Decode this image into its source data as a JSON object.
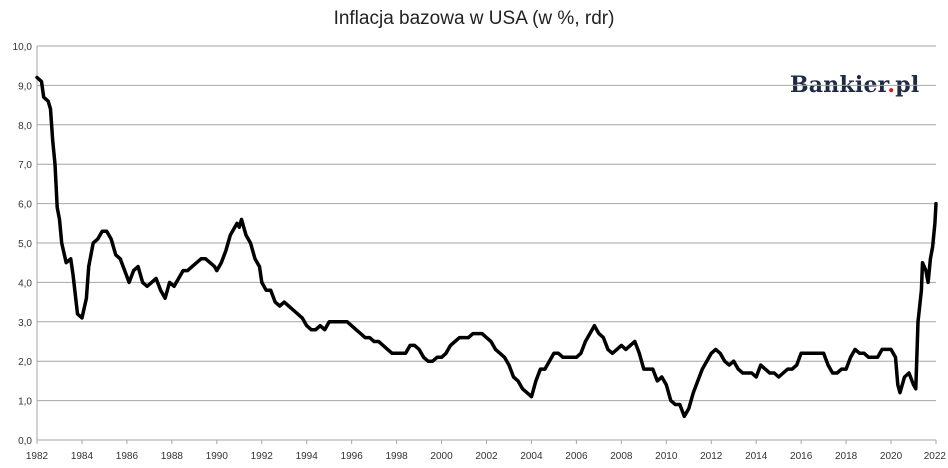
{
  "chart_data": {
    "type": "line",
    "title": "Inflacja bazowa w USA (w %, rdr)",
    "xlabel": "",
    "ylabel": "",
    "xlim": [
      1982,
      2022
    ],
    "ylim": [
      0,
      10
    ],
    "grid": true,
    "x_ticks": [
      "1982",
      "1984",
      "1986",
      "1988",
      "1990",
      "1992",
      "1994",
      "1996",
      "1998",
      "2000",
      "2002",
      "2004",
      "2006",
      "2008",
      "2010",
      "2012",
      "2014",
      "2016",
      "2018",
      "2020",
      "2022"
    ],
    "y_ticks": [
      "0,0",
      "1,0",
      "2,0",
      "3,0",
      "4,0",
      "5,0",
      "6,0",
      "7,0",
      "8,0",
      "9,0",
      "10,0"
    ],
    "series": [
      {
        "points": [
          [
            1982.0,
            9.2
          ],
          [
            1982.2,
            9.1
          ],
          [
            1982.3,
            8.7
          ],
          [
            1982.5,
            8.6
          ],
          [
            1982.6,
            8.4
          ],
          [
            1982.7,
            7.6
          ],
          [
            1982.8,
            7.0
          ],
          [
            1982.9,
            5.9
          ],
          [
            1983.0,
            5.6
          ],
          [
            1983.1,
            5.0
          ],
          [
            1983.3,
            4.5
          ],
          [
            1983.5,
            4.6
          ],
          [
            1983.6,
            4.2
          ],
          [
            1983.8,
            3.2
          ],
          [
            1984.0,
            3.1
          ],
          [
            1984.2,
            3.6
          ],
          [
            1984.3,
            4.4
          ],
          [
            1984.5,
            5.0
          ],
          [
            1984.7,
            5.1
          ],
          [
            1984.9,
            5.3
          ],
          [
            1985.1,
            5.3
          ],
          [
            1985.3,
            5.1
          ],
          [
            1985.5,
            4.7
          ],
          [
            1985.7,
            4.6
          ],
          [
            1985.9,
            4.3
          ],
          [
            1986.1,
            4.0
          ],
          [
            1986.3,
            4.3
          ],
          [
            1986.5,
            4.4
          ],
          [
            1986.7,
            4.0
          ],
          [
            1986.9,
            3.9
          ],
          [
            1987.1,
            4.0
          ],
          [
            1987.3,
            4.1
          ],
          [
            1987.5,
            3.8
          ],
          [
            1987.7,
            3.6
          ],
          [
            1987.9,
            4.0
          ],
          [
            1988.1,
            3.9
          ],
          [
            1988.3,
            4.1
          ],
          [
            1988.5,
            4.3
          ],
          [
            1988.7,
            4.3
          ],
          [
            1988.9,
            4.4
          ],
          [
            1989.1,
            4.5
          ],
          [
            1989.3,
            4.6
          ],
          [
            1989.5,
            4.6
          ],
          [
            1989.7,
            4.5
          ],
          [
            1989.9,
            4.4
          ],
          [
            1990.0,
            4.3
          ],
          [
            1990.2,
            4.5
          ],
          [
            1990.4,
            4.8
          ],
          [
            1990.6,
            5.2
          ],
          [
            1990.8,
            5.4
          ],
          [
            1990.9,
            5.5
          ],
          [
            1991.0,
            5.4
          ],
          [
            1991.1,
            5.6
          ],
          [
            1991.3,
            5.2
          ],
          [
            1991.5,
            5.0
          ],
          [
            1991.7,
            4.6
          ],
          [
            1991.9,
            4.4
          ],
          [
            1992.0,
            4.0
          ],
          [
            1992.2,
            3.8
          ],
          [
            1992.4,
            3.8
          ],
          [
            1992.6,
            3.5
          ],
          [
            1992.8,
            3.4
          ],
          [
            1993.0,
            3.5
          ],
          [
            1993.2,
            3.4
          ],
          [
            1993.4,
            3.3
          ],
          [
            1993.6,
            3.2
          ],
          [
            1993.8,
            3.1
          ],
          [
            1994.0,
            2.9
          ],
          [
            1994.2,
            2.8
          ],
          [
            1994.4,
            2.8
          ],
          [
            1994.6,
            2.9
          ],
          [
            1994.8,
            2.8
          ],
          [
            1995.0,
            3.0
          ],
          [
            1995.2,
            3.0
          ],
          [
            1995.4,
            3.0
          ],
          [
            1995.6,
            3.0
          ],
          [
            1995.8,
            3.0
          ],
          [
            1996.0,
            2.9
          ],
          [
            1996.2,
            2.8
          ],
          [
            1996.4,
            2.7
          ],
          [
            1996.6,
            2.6
          ],
          [
            1996.8,
            2.6
          ],
          [
            1997.0,
            2.5
          ],
          [
            1997.2,
            2.5
          ],
          [
            1997.4,
            2.4
          ],
          [
            1997.6,
            2.3
          ],
          [
            1997.8,
            2.2
          ],
          [
            1998.0,
            2.2
          ],
          [
            1998.2,
            2.2
          ],
          [
            1998.4,
            2.2
          ],
          [
            1998.6,
            2.4
          ],
          [
            1998.8,
            2.4
          ],
          [
            1999.0,
            2.3
          ],
          [
            1999.2,
            2.1
          ],
          [
            1999.4,
            2.0
          ],
          [
            1999.6,
            2.0
          ],
          [
            1999.8,
            2.1
          ],
          [
            2000.0,
            2.1
          ],
          [
            2000.2,
            2.2
          ],
          [
            2000.4,
            2.4
          ],
          [
            2000.6,
            2.5
          ],
          [
            2000.8,
            2.6
          ],
          [
            2001.0,
            2.6
          ],
          [
            2001.2,
            2.6
          ],
          [
            2001.4,
            2.7
          ],
          [
            2001.6,
            2.7
          ],
          [
            2001.8,
            2.7
          ],
          [
            2002.0,
            2.6
          ],
          [
            2002.2,
            2.5
          ],
          [
            2002.4,
            2.3
          ],
          [
            2002.6,
            2.2
          ],
          [
            2002.8,
            2.1
          ],
          [
            2003.0,
            1.9
          ],
          [
            2003.2,
            1.6
          ],
          [
            2003.4,
            1.5
          ],
          [
            2003.6,
            1.3
          ],
          [
            2003.8,
            1.2
          ],
          [
            2004.0,
            1.1
          ],
          [
            2004.2,
            1.5
          ],
          [
            2004.4,
            1.8
          ],
          [
            2004.6,
            1.8
          ],
          [
            2004.8,
            2.0
          ],
          [
            2005.0,
            2.2
          ],
          [
            2005.2,
            2.2
          ],
          [
            2005.4,
            2.1
          ],
          [
            2005.6,
            2.1
          ],
          [
            2005.8,
            2.1
          ],
          [
            2006.0,
            2.1
          ],
          [
            2006.2,
            2.2
          ],
          [
            2006.4,
            2.5
          ],
          [
            2006.6,
            2.7
          ],
          [
            2006.8,
            2.9
          ],
          [
            2007.0,
            2.7
          ],
          [
            2007.2,
            2.6
          ],
          [
            2007.4,
            2.3
          ],
          [
            2007.6,
            2.2
          ],
          [
            2007.8,
            2.3
          ],
          [
            2008.0,
            2.4
          ],
          [
            2008.2,
            2.3
          ],
          [
            2008.4,
            2.4
          ],
          [
            2008.6,
            2.5
          ],
          [
            2008.8,
            2.2
          ],
          [
            2009.0,
            1.8
          ],
          [
            2009.2,
            1.8
          ],
          [
            2009.4,
            1.8
          ],
          [
            2009.6,
            1.5
          ],
          [
            2009.8,
            1.6
          ],
          [
            2010.0,
            1.4
          ],
          [
            2010.2,
            1.0
          ],
          [
            2010.4,
            0.9
          ],
          [
            2010.6,
            0.9
          ],
          [
            2010.8,
            0.6
          ],
          [
            2011.0,
            0.8
          ],
          [
            2011.2,
            1.2
          ],
          [
            2011.4,
            1.5
          ],
          [
            2011.6,
            1.8
          ],
          [
            2011.8,
            2.0
          ],
          [
            2012.0,
            2.2
          ],
          [
            2012.2,
            2.3
          ],
          [
            2012.4,
            2.2
          ],
          [
            2012.6,
            2.0
          ],
          [
            2012.8,
            1.9
          ],
          [
            2013.0,
            2.0
          ],
          [
            2013.2,
            1.8
          ],
          [
            2013.4,
            1.7
          ],
          [
            2013.6,
            1.7
          ],
          [
            2013.8,
            1.7
          ],
          [
            2014.0,
            1.6
          ],
          [
            2014.2,
            1.9
          ],
          [
            2014.4,
            1.8
          ],
          [
            2014.6,
            1.7
          ],
          [
            2014.8,
            1.7
          ],
          [
            2015.0,
            1.6
          ],
          [
            2015.2,
            1.7
          ],
          [
            2015.4,
            1.8
          ],
          [
            2015.6,
            1.8
          ],
          [
            2015.8,
            1.9
          ],
          [
            2016.0,
            2.2
          ],
          [
            2016.2,
            2.2
          ],
          [
            2016.4,
            2.2
          ],
          [
            2016.6,
            2.2
          ],
          [
            2016.8,
            2.2
          ],
          [
            2017.0,
            2.2
          ],
          [
            2017.2,
            1.9
          ],
          [
            2017.4,
            1.7
          ],
          [
            2017.6,
            1.7
          ],
          [
            2017.8,
            1.8
          ],
          [
            2018.0,
            1.8
          ],
          [
            2018.2,
            2.1
          ],
          [
            2018.4,
            2.3
          ],
          [
            2018.6,
            2.2
          ],
          [
            2018.8,
            2.2
          ],
          [
            2019.0,
            2.1
          ],
          [
            2019.2,
            2.1
          ],
          [
            2019.4,
            2.1
          ],
          [
            2019.6,
            2.3
          ],
          [
            2019.8,
            2.3
          ],
          [
            2020.0,
            2.3
          ],
          [
            2020.2,
            2.1
          ],
          [
            2020.3,
            1.4
          ],
          [
            2020.4,
            1.2
          ],
          [
            2020.6,
            1.6
          ],
          [
            2020.8,
            1.7
          ],
          [
            2021.0,
            1.4
          ],
          [
            2021.1,
            1.3
          ],
          [
            2021.2,
            3.0
          ],
          [
            2021.35,
            3.8
          ],
          [
            2021.4,
            4.5
          ],
          [
            2021.55,
            4.3
          ],
          [
            2021.65,
            4.0
          ],
          [
            2021.75,
            4.6
          ],
          [
            2021.85,
            4.9
          ],
          [
            2021.95,
            5.5
          ],
          [
            2022.0,
            6.0
          ]
        ]
      }
    ]
  },
  "brand": {
    "name": "Bankier",
    "suffix": "pl",
    "dot": ".",
    "dot_color": "#d11a1a",
    "text_color": "#1f2a44"
  },
  "colors": {
    "line": "#000000",
    "grid": "#a6a6a6",
    "axis_text": "#333333"
  }
}
